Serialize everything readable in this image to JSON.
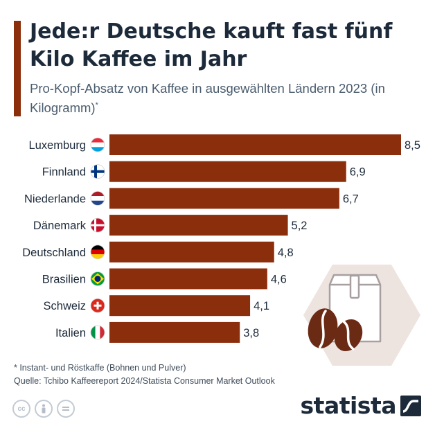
{
  "title": "Jede:r Deutsche kauft fast fünf Kilo Kaffee im Jahr",
  "subtitle": "Pro-Kopf-Absatz von Kaffee in ausgewählten Ländern 2023 (in Kilogramm)",
  "subtitle_marker": "*",
  "footnote": "* Instant- und Röstkaffe (Bohnen und Pulver)",
  "source": "Quelle: Tchibo Kaffeereport 2024/Statista Consumer Market Outlook",
  "brand": "statista",
  "colors": {
    "bar": "#8b2e0c",
    "accent": "#8b2e0c",
    "text": "#1c2a3a",
    "hexagon": "#ede3df"
  },
  "chart_data": {
    "type": "bar",
    "orientation": "horizontal",
    "title": "Jede:r Deutsche kauft fast fünf Kilo Kaffee im Jahr",
    "unit": "kg",
    "categories": [
      "Luxemburg",
      "Finnland",
      "Niederlande",
      "Dänemark",
      "Deutschland",
      "Brasilien",
      "Schweiz",
      "Italien"
    ],
    "values": [
      8.5,
      6.9,
      6.7,
      5.2,
      4.8,
      4.6,
      4.1,
      3.8
    ],
    "value_labels": [
      "8,5",
      "6,9",
      "6,7",
      "5,2",
      "4,8",
      "4,6",
      "4,1",
      "3,8"
    ],
    "flags": [
      "flag-lu-icon",
      "flag-fi-icon",
      "flag-nl-icon",
      "flag-dk-icon",
      "flag-de-icon",
      "flag-br-icon",
      "flag-ch-icon",
      "flag-it-icon"
    ],
    "xlim": [
      0,
      8.5
    ]
  }
}
